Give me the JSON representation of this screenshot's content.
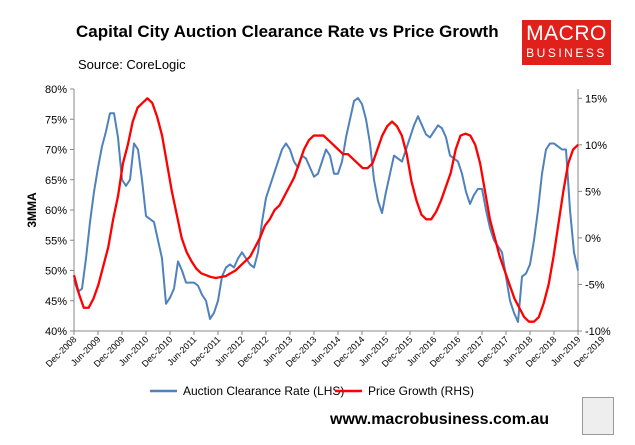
{
  "header": {
    "title": "Capital City Auction Clearance Rate vs Price Growth",
    "source": "Source: CoreLogic"
  },
  "logo": {
    "line1": "MACRO",
    "line2": "BUSINESS"
  },
  "footer": {
    "url": "www.macrobusiness.com.au"
  },
  "colors": {
    "clearance": "#4f81bd",
    "price": "#ff0000",
    "brand": "#e0201b"
  },
  "chart_data": {
    "type": "line",
    "ylabel": "3MMA",
    "x_labels": [
      "Dec-2008",
      "Jun-2009",
      "Dec-2009",
      "Jun-2010",
      "Dec-2010",
      "Jun-2011",
      "Dec-2011",
      "Jun-2012",
      "Dec-2012",
      "Jun-2013",
      "Dec-2013",
      "Jun-2014",
      "Dec-2014",
      "Jun-2015",
      "Dec-2015",
      "Jun-2016",
      "Dec-2016",
      "Jun-2017",
      "Dec-2017",
      "Jun-2018",
      "Dec-2018",
      "Jun-2019",
      "Dec-2019"
    ],
    "left_axis": {
      "ticks": [
        "40%",
        "45%",
        "50%",
        "55%",
        "60%",
        "65%",
        "70%",
        "75%",
        "80%"
      ],
      "min": 40,
      "max": 80
    },
    "right_axis": {
      "ticks": [
        "-10%",
        "-5%",
        "0%",
        "5%",
        "10%",
        "15%"
      ],
      "min": -10,
      "max": 16
    },
    "series": [
      {
        "name": "Auction Clearance Rate (LHS)",
        "axis": "left",
        "values": [
          48.5,
          46.5,
          47,
          52,
          58,
          63,
          67,
          70.5,
          73,
          76,
          76,
          72,
          65,
          64,
          65,
          71,
          70,
          65,
          59,
          58.5,
          58,
          55,
          52,
          44.5,
          45.5,
          47,
          51.5,
          50,
          48,
          48,
          48,
          47.5,
          46,
          45,
          42,
          43,
          45,
          49,
          50.5,
          51,
          50.5,
          52,
          53,
          52,
          51,
          50.5,
          53,
          58,
          62,
          64,
          66,
          68,
          70,
          71,
          70,
          68,
          67,
          69,
          68.5,
          67,
          65.5,
          66,
          68,
          70,
          69,
          66,
          66,
          68,
          72,
          75,
          78,
          78.5,
          77.5,
          75,
          71,
          65,
          61.5,
          59.5,
          63,
          66,
          69,
          68.5,
          68,
          70,
          72,
          74,
          75.5,
          74,
          72.5,
          72,
          73,
          74,
          73.5,
          72,
          69,
          68.5,
          68,
          66,
          63,
          61,
          62.5,
          63.5,
          63.5,
          60,
          57,
          55,
          54,
          53,
          49,
          45,
          43,
          41.5,
          49,
          49.5,
          51,
          55,
          60,
          66,
          70,
          71,
          71,
          70.5,
          70,
          70,
          60,
          53,
          50
        ]
      },
      {
        "name": "Price Growth (RHS)",
        "axis": "right",
        "values": [
          -4,
          -6,
          -7.5,
          -7.5,
          -6.5,
          -5,
          -3,
          -1,
          2,
          4.5,
          8,
          10,
          12.5,
          14,
          14.5,
          15,
          14.5,
          13,
          11,
          8,
          5,
          2.5,
          0,
          -1.5,
          -2.5,
          -3.3,
          -3.8,
          -4,
          -4.2,
          -4.3,
          -4.2,
          -4.1,
          -3.8,
          -3.5,
          -3,
          -2.5,
          -2,
          -1,
          0,
          1.3,
          2,
          3,
          3.5,
          4.5,
          5.5,
          6.5,
          8,
          9.5,
          10.5,
          11,
          11,
          11,
          10.5,
          10,
          9.5,
          9,
          9,
          8.5,
          8,
          7.5,
          7.5,
          8,
          9.5,
          11,
          12,
          12.5,
          12,
          11,
          9,
          6,
          4,
          2.5,
          2,
          2,
          2.8,
          4,
          5.5,
          7,
          9.5,
          11,
          11.2,
          11,
          10,
          8,
          5,
          2,
          0,
          -2,
          -3.5,
          -5,
          -6.5,
          -7.5,
          -8.5,
          -9,
          -9,
          -8.5,
          -7,
          -5,
          -2,
          1.5,
          5,
          8,
          9.5,
          10
        ]
      }
    ],
    "legend": "bottom",
    "grid": false
  }
}
